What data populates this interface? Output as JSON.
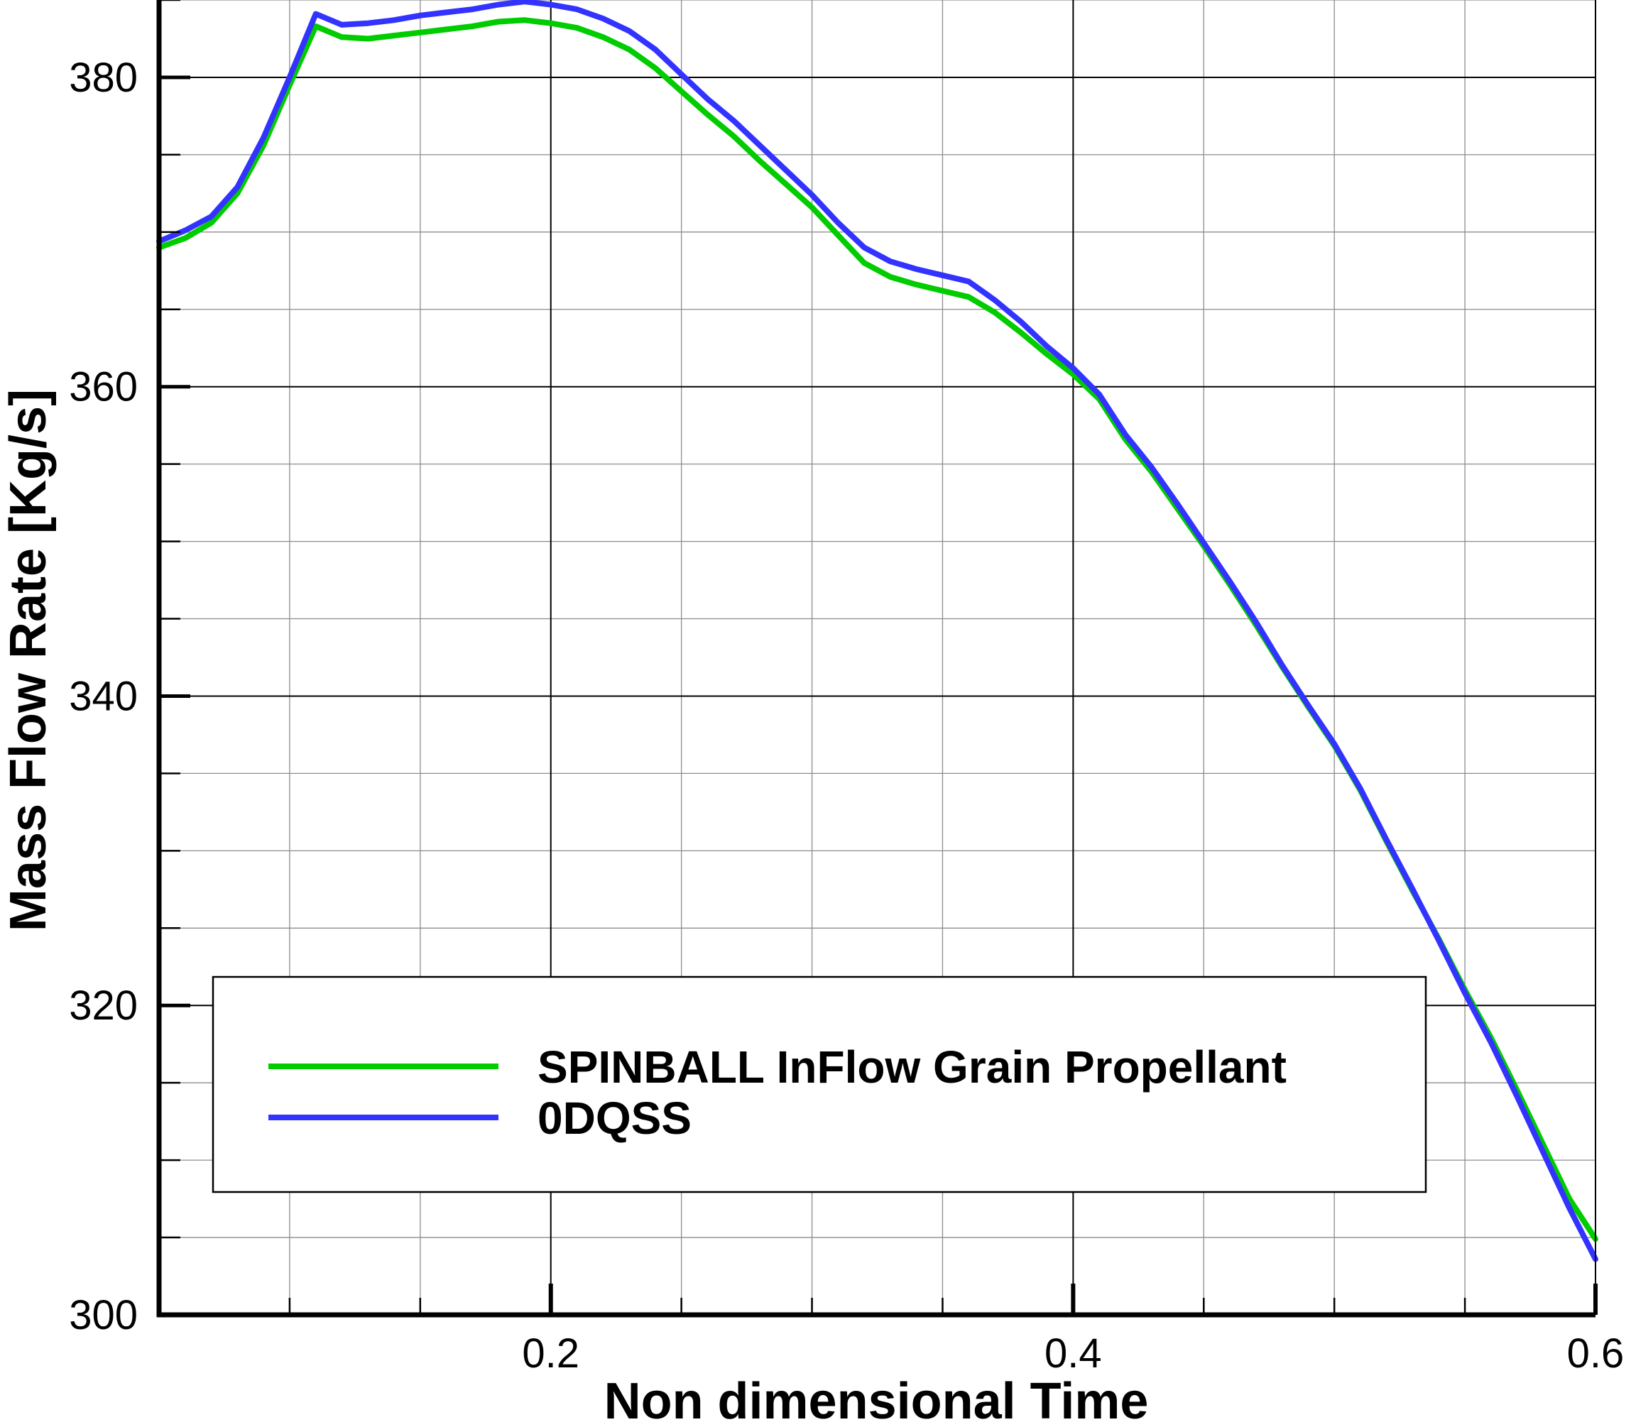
{
  "chart_data": {
    "type": "line",
    "title": "",
    "xlabel": "Non dimensional Time",
    "ylabel": "Mass Flow Rate [Kg/s]",
    "xlim": [
      0.05,
      0.6
    ],
    "ylim": [
      300,
      385
    ],
    "x_major_ticks": [
      0.2,
      0.4,
      0.6
    ],
    "x_tick_labels": [
      "0.2",
      "0.4",
      "0.6"
    ],
    "x_minor_step": 0.05,
    "y_major_ticks": [
      300,
      320,
      340,
      360,
      380
    ],
    "y_tick_labels": [
      "300",
      "320",
      "340",
      "360",
      "380"
    ],
    "y_minor_step": 5,
    "grid": true,
    "legend_position": "bottom-center",
    "series": [
      {
        "name": "SPINBALL InFlow Grain Propellant",
        "color": "#00cc00",
        "points": [
          [
            0.05,
            369.0
          ],
          [
            0.06,
            369.6
          ],
          [
            0.07,
            370.6
          ],
          [
            0.08,
            372.5
          ],
          [
            0.09,
            375.6
          ],
          [
            0.1,
            379.5
          ],
          [
            0.11,
            383.3
          ],
          [
            0.12,
            382.6
          ],
          [
            0.13,
            382.5
          ],
          [
            0.14,
            382.7
          ],
          [
            0.15,
            382.9
          ],
          [
            0.16,
            383.1
          ],
          [
            0.17,
            383.3
          ],
          [
            0.18,
            383.6
          ],
          [
            0.19,
            383.7
          ],
          [
            0.2,
            383.5
          ],
          [
            0.21,
            383.2
          ],
          [
            0.22,
            382.6
          ],
          [
            0.23,
            381.8
          ],
          [
            0.24,
            380.6
          ],
          [
            0.25,
            379.1
          ],
          [
            0.26,
            377.6
          ],
          [
            0.27,
            376.2
          ],
          [
            0.28,
            374.6
          ],
          [
            0.29,
            373.1
          ],
          [
            0.3,
            371.6
          ],
          [
            0.31,
            369.8
          ],
          [
            0.32,
            368.0
          ],
          [
            0.33,
            367.1
          ],
          [
            0.34,
            366.6
          ],
          [
            0.35,
            366.2
          ],
          [
            0.36,
            365.8
          ],
          [
            0.37,
            364.8
          ],
          [
            0.38,
            363.5
          ],
          [
            0.39,
            362.1
          ],
          [
            0.4,
            360.8
          ],
          [
            0.41,
            359.2
          ],
          [
            0.42,
            356.6
          ],
          [
            0.43,
            354.5
          ],
          [
            0.44,
            352.1
          ],
          [
            0.45,
            349.7
          ],
          [
            0.46,
            347.2
          ],
          [
            0.47,
            344.6
          ],
          [
            0.48,
            341.9
          ],
          [
            0.49,
            339.3
          ],
          [
            0.5,
            336.8
          ],
          [
            0.51,
            333.9
          ],
          [
            0.52,
            330.6
          ],
          [
            0.53,
            327.4
          ],
          [
            0.54,
            324.3
          ],
          [
            0.55,
            321.0
          ],
          [
            0.56,
            317.9
          ],
          [
            0.57,
            314.5
          ],
          [
            0.58,
            311.0
          ],
          [
            0.59,
            307.5
          ],
          [
            0.6,
            304.9
          ]
        ]
      },
      {
        "name": "0DQSS",
        "color": "#3333ff",
        "points": [
          [
            0.05,
            369.4
          ],
          [
            0.06,
            370.1
          ],
          [
            0.07,
            371.0
          ],
          [
            0.08,
            372.9
          ],
          [
            0.09,
            376.1
          ],
          [
            0.1,
            380.0
          ],
          [
            0.11,
            384.1
          ],
          [
            0.12,
            383.4
          ],
          [
            0.13,
            383.5
          ],
          [
            0.14,
            383.7
          ],
          [
            0.15,
            384.0
          ],
          [
            0.16,
            384.2
          ],
          [
            0.17,
            384.4
          ],
          [
            0.18,
            384.7
          ],
          [
            0.19,
            384.9
          ],
          [
            0.2,
            384.7
          ],
          [
            0.21,
            384.4
          ],
          [
            0.22,
            383.8
          ],
          [
            0.23,
            383.0
          ],
          [
            0.24,
            381.8
          ],
          [
            0.25,
            380.2
          ],
          [
            0.26,
            378.6
          ],
          [
            0.27,
            377.2
          ],
          [
            0.28,
            375.6
          ],
          [
            0.29,
            374.0
          ],
          [
            0.3,
            372.4
          ],
          [
            0.31,
            370.6
          ],
          [
            0.32,
            369.0
          ],
          [
            0.33,
            368.1
          ],
          [
            0.34,
            367.6
          ],
          [
            0.35,
            367.2
          ],
          [
            0.36,
            366.8
          ],
          [
            0.37,
            365.6
          ],
          [
            0.38,
            364.2
          ],
          [
            0.39,
            362.6
          ],
          [
            0.4,
            361.2
          ],
          [
            0.41,
            359.5
          ],
          [
            0.42,
            356.9
          ],
          [
            0.43,
            354.8
          ],
          [
            0.44,
            352.4
          ],
          [
            0.45,
            349.9
          ],
          [
            0.46,
            347.4
          ],
          [
            0.47,
            344.8
          ],
          [
            0.48,
            342.0
          ],
          [
            0.49,
            339.4
          ],
          [
            0.5,
            336.9
          ],
          [
            0.51,
            334.0
          ],
          [
            0.52,
            330.7
          ],
          [
            0.53,
            327.5
          ],
          [
            0.54,
            324.2
          ],
          [
            0.55,
            320.8
          ],
          [
            0.56,
            317.6
          ],
          [
            0.57,
            314.1
          ],
          [
            0.58,
            310.5
          ],
          [
            0.59,
            306.9
          ],
          [
            0.6,
            303.6
          ]
        ]
      }
    ]
  }
}
